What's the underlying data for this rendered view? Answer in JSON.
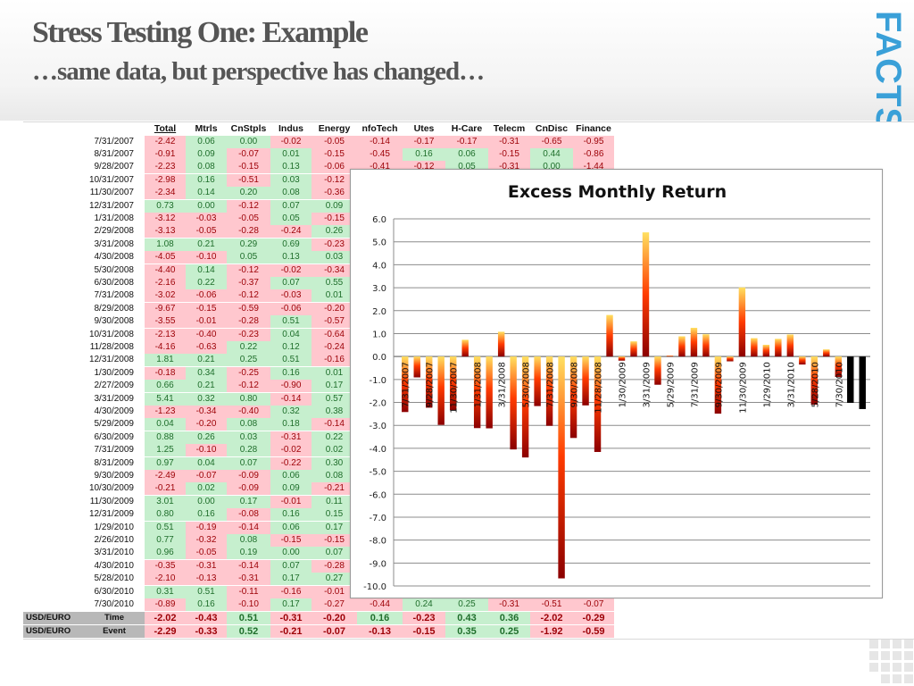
{
  "slide": {
    "title": "Stress Testing One:  Example",
    "subtitle": "…same data, but perspective has changed…",
    "logo_text": "FACTSE"
  },
  "table": {
    "headers": [
      "Total",
      "Mtrls",
      "CnStpls",
      "Indus",
      "Energy",
      "nfoTech",
      "Utes",
      "H-Care",
      "Telecm",
      "CnDisc",
      "Finance"
    ],
    "rows": [
      {
        "date": "7/31/2007",
        "values": [
          "-2.42",
          "0.06",
          "0.00",
          "-0.02",
          "-0.05",
          "-0.14",
          "-0.17",
          "-0.17",
          "-0.31",
          "-0.65",
          "-0.95"
        ]
      },
      {
        "date": "8/31/2007",
        "values": [
          "-0.91",
          "0.09",
          "-0.07",
          "0.01",
          "-0.15",
          "-0.45",
          "0.16",
          "0.06",
          "-0.15",
          "0.44",
          "-0.86"
        ]
      },
      {
        "date": "9/28/2007",
        "values": [
          "-2.23",
          "0.08",
          "-0.15",
          "0.13",
          "-0.06",
          "-0.41",
          "-0.12",
          "0.05",
          "-0.31",
          "0.00",
          "-1.44"
        ]
      },
      {
        "date": "10/31/2007",
        "values": [
          "-2.98",
          "0.16",
          "-0.51",
          "0.03",
          "-0.12"
        ]
      },
      {
        "date": "11/30/2007",
        "values": [
          "-2.34",
          "0.14",
          "0.20",
          "0.08",
          "-0.36"
        ]
      },
      {
        "date": "12/31/2007",
        "values": [
          "0.73",
          "0.00",
          "-0.12",
          "0.07",
          "0.09"
        ]
      },
      {
        "date": "1/31/2008",
        "values": [
          "-3.12",
          "-0.03",
          "-0.05",
          "0.05",
          "-0.15"
        ]
      },
      {
        "date": "2/29/2008",
        "values": [
          "-3.13",
          "-0.05",
          "-0.28",
          "-0.24",
          "0.26"
        ]
      },
      {
        "date": "3/31/2008",
        "values": [
          "1.08",
          "0.21",
          "0.29",
          "0.69",
          "-0.23"
        ]
      },
      {
        "date": "4/30/2008",
        "values": [
          "-4.05",
          "-0.10",
          "0.05",
          "0.13",
          "0.03"
        ]
      },
      {
        "date": "5/30/2008",
        "values": [
          "-4.40",
          "0.14",
          "-0.12",
          "-0.02",
          "-0.34"
        ]
      },
      {
        "date": "6/30/2008",
        "values": [
          "-2.16",
          "0.22",
          "-0.37",
          "0.07",
          "0.55"
        ]
      },
      {
        "date": "7/31/2008",
        "values": [
          "-3.02",
          "-0.06",
          "-0.12",
          "-0.03",
          "0.01"
        ]
      },
      {
        "date": "8/29/2008",
        "values": [
          "-9.67",
          "-0.15",
          "-0.59",
          "-0.06",
          "-0.20"
        ]
      },
      {
        "date": "9/30/2008",
        "values": [
          "-3.55",
          "-0.01",
          "-0.28",
          "0.51",
          "-0.57"
        ]
      },
      {
        "date": "10/31/2008",
        "values": [
          "-2.13",
          "-0.40",
          "-0.23",
          "0.04",
          "-0.64"
        ]
      },
      {
        "date": "11/28/2008",
        "values": [
          "-4.16",
          "-0.63",
          "0.22",
          "0.12",
          "-0.24"
        ]
      },
      {
        "date": "12/31/2008",
        "values": [
          "1.81",
          "0.21",
          "0.25",
          "0.51",
          "-0.16"
        ]
      },
      {
        "date": "1/30/2009",
        "values": [
          "-0.18",
          "0.34",
          "-0.25",
          "0.16",
          "0.01"
        ]
      },
      {
        "date": "2/27/2009",
        "values": [
          "0.66",
          "0.21",
          "-0.12",
          "-0.90",
          "0.17"
        ]
      },
      {
        "date": "3/31/2009",
        "values": [
          "5.41",
          "0.32",
          "0.80",
          "-0.14",
          "0.57"
        ]
      },
      {
        "date": "4/30/2009",
        "values": [
          "-1.23",
          "-0.34",
          "-0.40",
          "0.32",
          "0.38"
        ]
      },
      {
        "date": "5/29/2009",
        "values": [
          "0.04",
          "-0.20",
          "0.08",
          "0.18",
          "-0.14"
        ]
      },
      {
        "date": "6/30/2009",
        "values": [
          "0.88",
          "0.26",
          "0.03",
          "-0.31",
          "0.22"
        ]
      },
      {
        "date": "7/31/2009",
        "values": [
          "1.25",
          "-0.10",
          "0.28",
          "-0.02",
          "0.02"
        ]
      },
      {
        "date": "8/31/2009",
        "values": [
          "0.97",
          "0.04",
          "0.07",
          "-0.22",
          "0.30"
        ]
      },
      {
        "date": "9/30/2009",
        "values": [
          "-2.49",
          "-0.07",
          "-0.09",
          "0.06",
          "0.08"
        ]
      },
      {
        "date": "10/30/2009",
        "values": [
          "-0.21",
          "0.02",
          "-0.09",
          "0.09",
          "-0.21"
        ]
      },
      {
        "date": "11/30/2009",
        "values": [
          "3.01",
          "0.00",
          "0.17",
          "-0.01",
          "0.11"
        ]
      },
      {
        "date": "12/31/2009",
        "values": [
          "0.80",
          "0.16",
          "-0.08",
          "0.16",
          "0.15"
        ]
      },
      {
        "date": "1/29/2010",
        "values": [
          "0.51",
          "-0.19",
          "-0.14",
          "0.06",
          "0.17"
        ]
      },
      {
        "date": "2/26/2010",
        "values": [
          "0.77",
          "-0.32",
          "0.08",
          "-0.15",
          "-0.15"
        ]
      },
      {
        "date": "3/31/2010",
        "values": [
          "0.96",
          "-0.05",
          "0.19",
          "0.00",
          "0.07"
        ]
      },
      {
        "date": "4/30/2010",
        "values": [
          "-0.35",
          "-0.31",
          "-0.14",
          "0.07",
          "-0.28"
        ]
      },
      {
        "date": "5/28/2010",
        "values": [
          "-2.10",
          "-0.13",
          "-0.31",
          "0.17",
          "0.27"
        ]
      },
      {
        "date": "6/30/2010",
        "values": [
          "0.31",
          "0.51",
          "-0.11",
          "-0.16",
          "-0.01"
        ]
      },
      {
        "date": "7/30/2010",
        "values": [
          "-0.89",
          "0.16",
          "-0.10",
          "0.17",
          "-0.27",
          "-0.44",
          "0.24",
          "0.25",
          "-0.31",
          "-0.51",
          "-0.07"
        ]
      }
    ],
    "summary": [
      {
        "label": "USD/EURO",
        "type": "Time",
        "values": [
          "-2.02",
          "-0.43",
          "0.51",
          "-0.31",
          "-0.20",
          "0.16",
          "-0.23",
          "0.43",
          "0.36",
          "-2.02",
          "-0.29"
        ]
      },
      {
        "label": "USD/EURO",
        "type": "Event",
        "values": [
          "-2.29",
          "-0.33",
          "0.52",
          "-0.21",
          "-0.07",
          "-0.13",
          "-0.15",
          "0.35",
          "0.25",
          "-1.92",
          "-0.59"
        ]
      }
    ]
  },
  "chart_data": {
    "type": "bar",
    "title": "Excess Monthly Return",
    "xlabel": "",
    "ylabel": "",
    "ylim": [
      -10.0,
      6.0
    ],
    "yticks": [
      "6.0",
      "5.0",
      "4.0",
      "3.0",
      "2.0",
      "1.0",
      "0.0",
      "-1.0",
      "-2.0",
      "-3.0",
      "-4.0",
      "-5.0",
      "-6.0",
      "-7.0",
      "-8.0",
      "-9.0",
      "-10.0"
    ],
    "grid": true,
    "legend": "none",
    "categories": [
      "7/31/2007",
      "8/31/2007",
      "9/28/2007",
      "10/31/2007",
      "11/30/2007",
      "12/31/2007",
      "1/31/2008",
      "2/29/2008",
      "3/31/2008",
      "4/30/2008",
      "5/30/2008",
      "6/30/2008",
      "7/31/2008",
      "8/29/2008",
      "9/30/2008",
      "10/31/2008",
      "11/28/2008",
      "12/31/2008",
      "1/30/2009",
      "2/27/2009",
      "3/31/2009",
      "4/30/2009",
      "5/29/2009",
      "6/30/2009",
      "7/31/2009",
      "8/31/2009",
      "9/30/2009",
      "10/30/2009",
      "11/30/2009",
      "12/31/2009",
      "1/29/2010",
      "2/26/2010",
      "3/31/2010",
      "4/30/2010",
      "5/28/2010",
      "6/30/2010",
      "7/30/2010",
      "USD/EURO Time",
      "USD/EURO Event"
    ],
    "tick_labels": [
      "7/31/2007",
      "9/28/2007",
      "11/30/2007",
      "1/31/2008",
      "3/31/2008",
      "5/30/2008",
      "7/31/2008",
      "9/30/2008",
      "11/28/2008",
      "1/30/2009",
      "3/31/2009",
      "5/29/2009",
      "7/31/2009",
      "9/30/2009",
      "11/30/2009",
      "1/29/2010",
      "3/31/2010",
      "5/28/2010",
      "7/30/2010"
    ],
    "values": [
      -2.42,
      -0.91,
      -2.23,
      -2.98,
      -2.34,
      0.73,
      -3.12,
      -3.13,
      1.08,
      -4.05,
      -4.4,
      -2.16,
      -3.02,
      -9.67,
      -3.55,
      -2.13,
      -4.16,
      1.81,
      -0.18,
      0.66,
      5.41,
      -1.23,
      0.04,
      0.88,
      1.25,
      0.97,
      -2.49,
      -0.21,
      3.01,
      0.8,
      0.51,
      0.77,
      0.96,
      -0.35,
      -2.1,
      0.31,
      -0.89,
      -2.02,
      -2.29
    ],
    "colors": {
      "gradient_dark": "#8b0000",
      "gradient_mid": "#ff3b00",
      "gradient_light": "#ffe060",
      "stress_bar": "#000000"
    }
  },
  "colors": {
    "positive_bg": "#c6efce",
    "negative_bg": "#ffc7ce",
    "logo": "#3aa0d8"
  }
}
